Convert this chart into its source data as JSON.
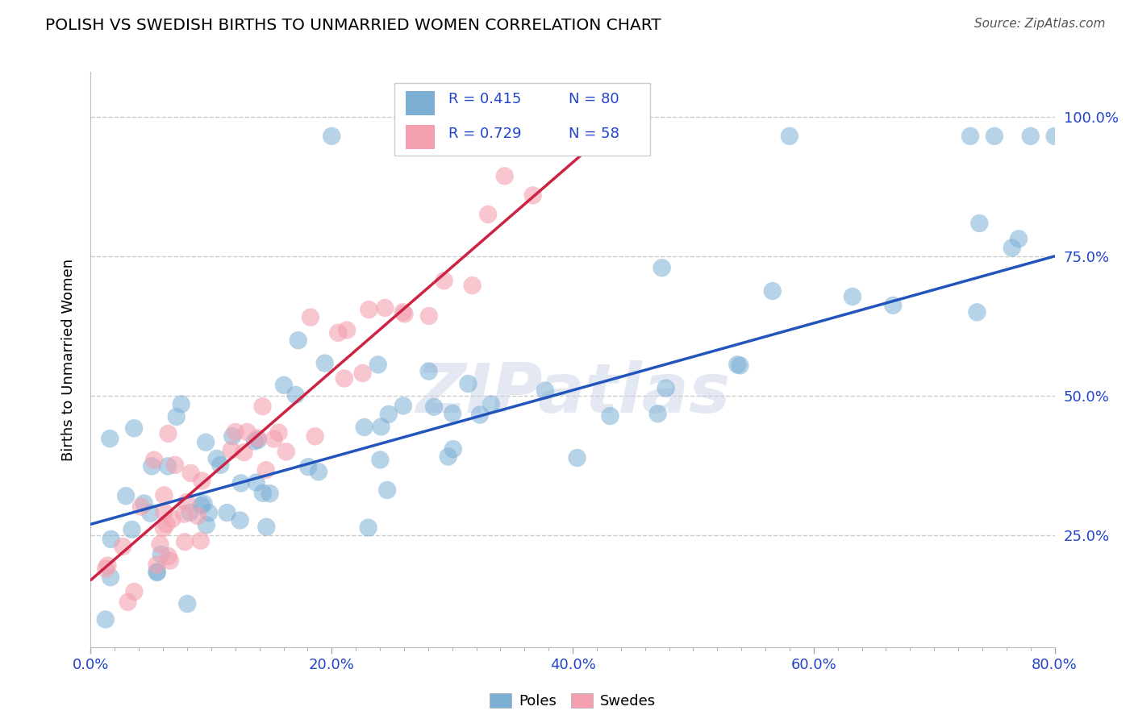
{
  "title": "POLISH VS SWEDISH BIRTHS TO UNMARRIED WOMEN CORRELATION CHART",
  "source": "Source: ZipAtlas.com",
  "ylabel": "Births to Unmarried Women",
  "xlim": [
    0.0,
    0.8
  ],
  "ylim": [
    0.05,
    1.08
  ],
  "x_ticks_major": [
    0.0,
    0.2,
    0.4,
    0.6,
    0.8
  ],
  "x_tick_labels": [
    "0.0%",
    "20.0%",
    "40.0%",
    "60.0%",
    "80.0%"
  ],
  "y_ticks": [
    0.25,
    0.5,
    0.75,
    1.0
  ],
  "y_tick_labels": [
    "25.0%",
    "50.0%",
    "75.0%",
    "100.0%"
  ],
  "grid_color": "#cccccc",
  "background_color": "#ffffff",
  "blue_color": "#7bafd4",
  "pink_color": "#f4a0b0",
  "blue_line_color": "#2255bb",
  "pink_line_color": "#cc2244",
  "text_color": "#2244cc",
  "legend_R_blue": "R = 0.415",
  "legend_N_blue": "N = 80",
  "legend_R_pink": "R = 0.729",
  "legend_N_pink": "N = 58",
  "watermark": "ZIPatlas",
  "poles_label": "Poles",
  "swedes_label": "Swedes",
  "blue_line_x": [
    0.0,
    0.8
  ],
  "blue_line_y": [
    0.27,
    0.75
  ],
  "pink_line_x": [
    0.0,
    0.46
  ],
  "pink_line_y": [
    0.17,
    1.03
  ]
}
